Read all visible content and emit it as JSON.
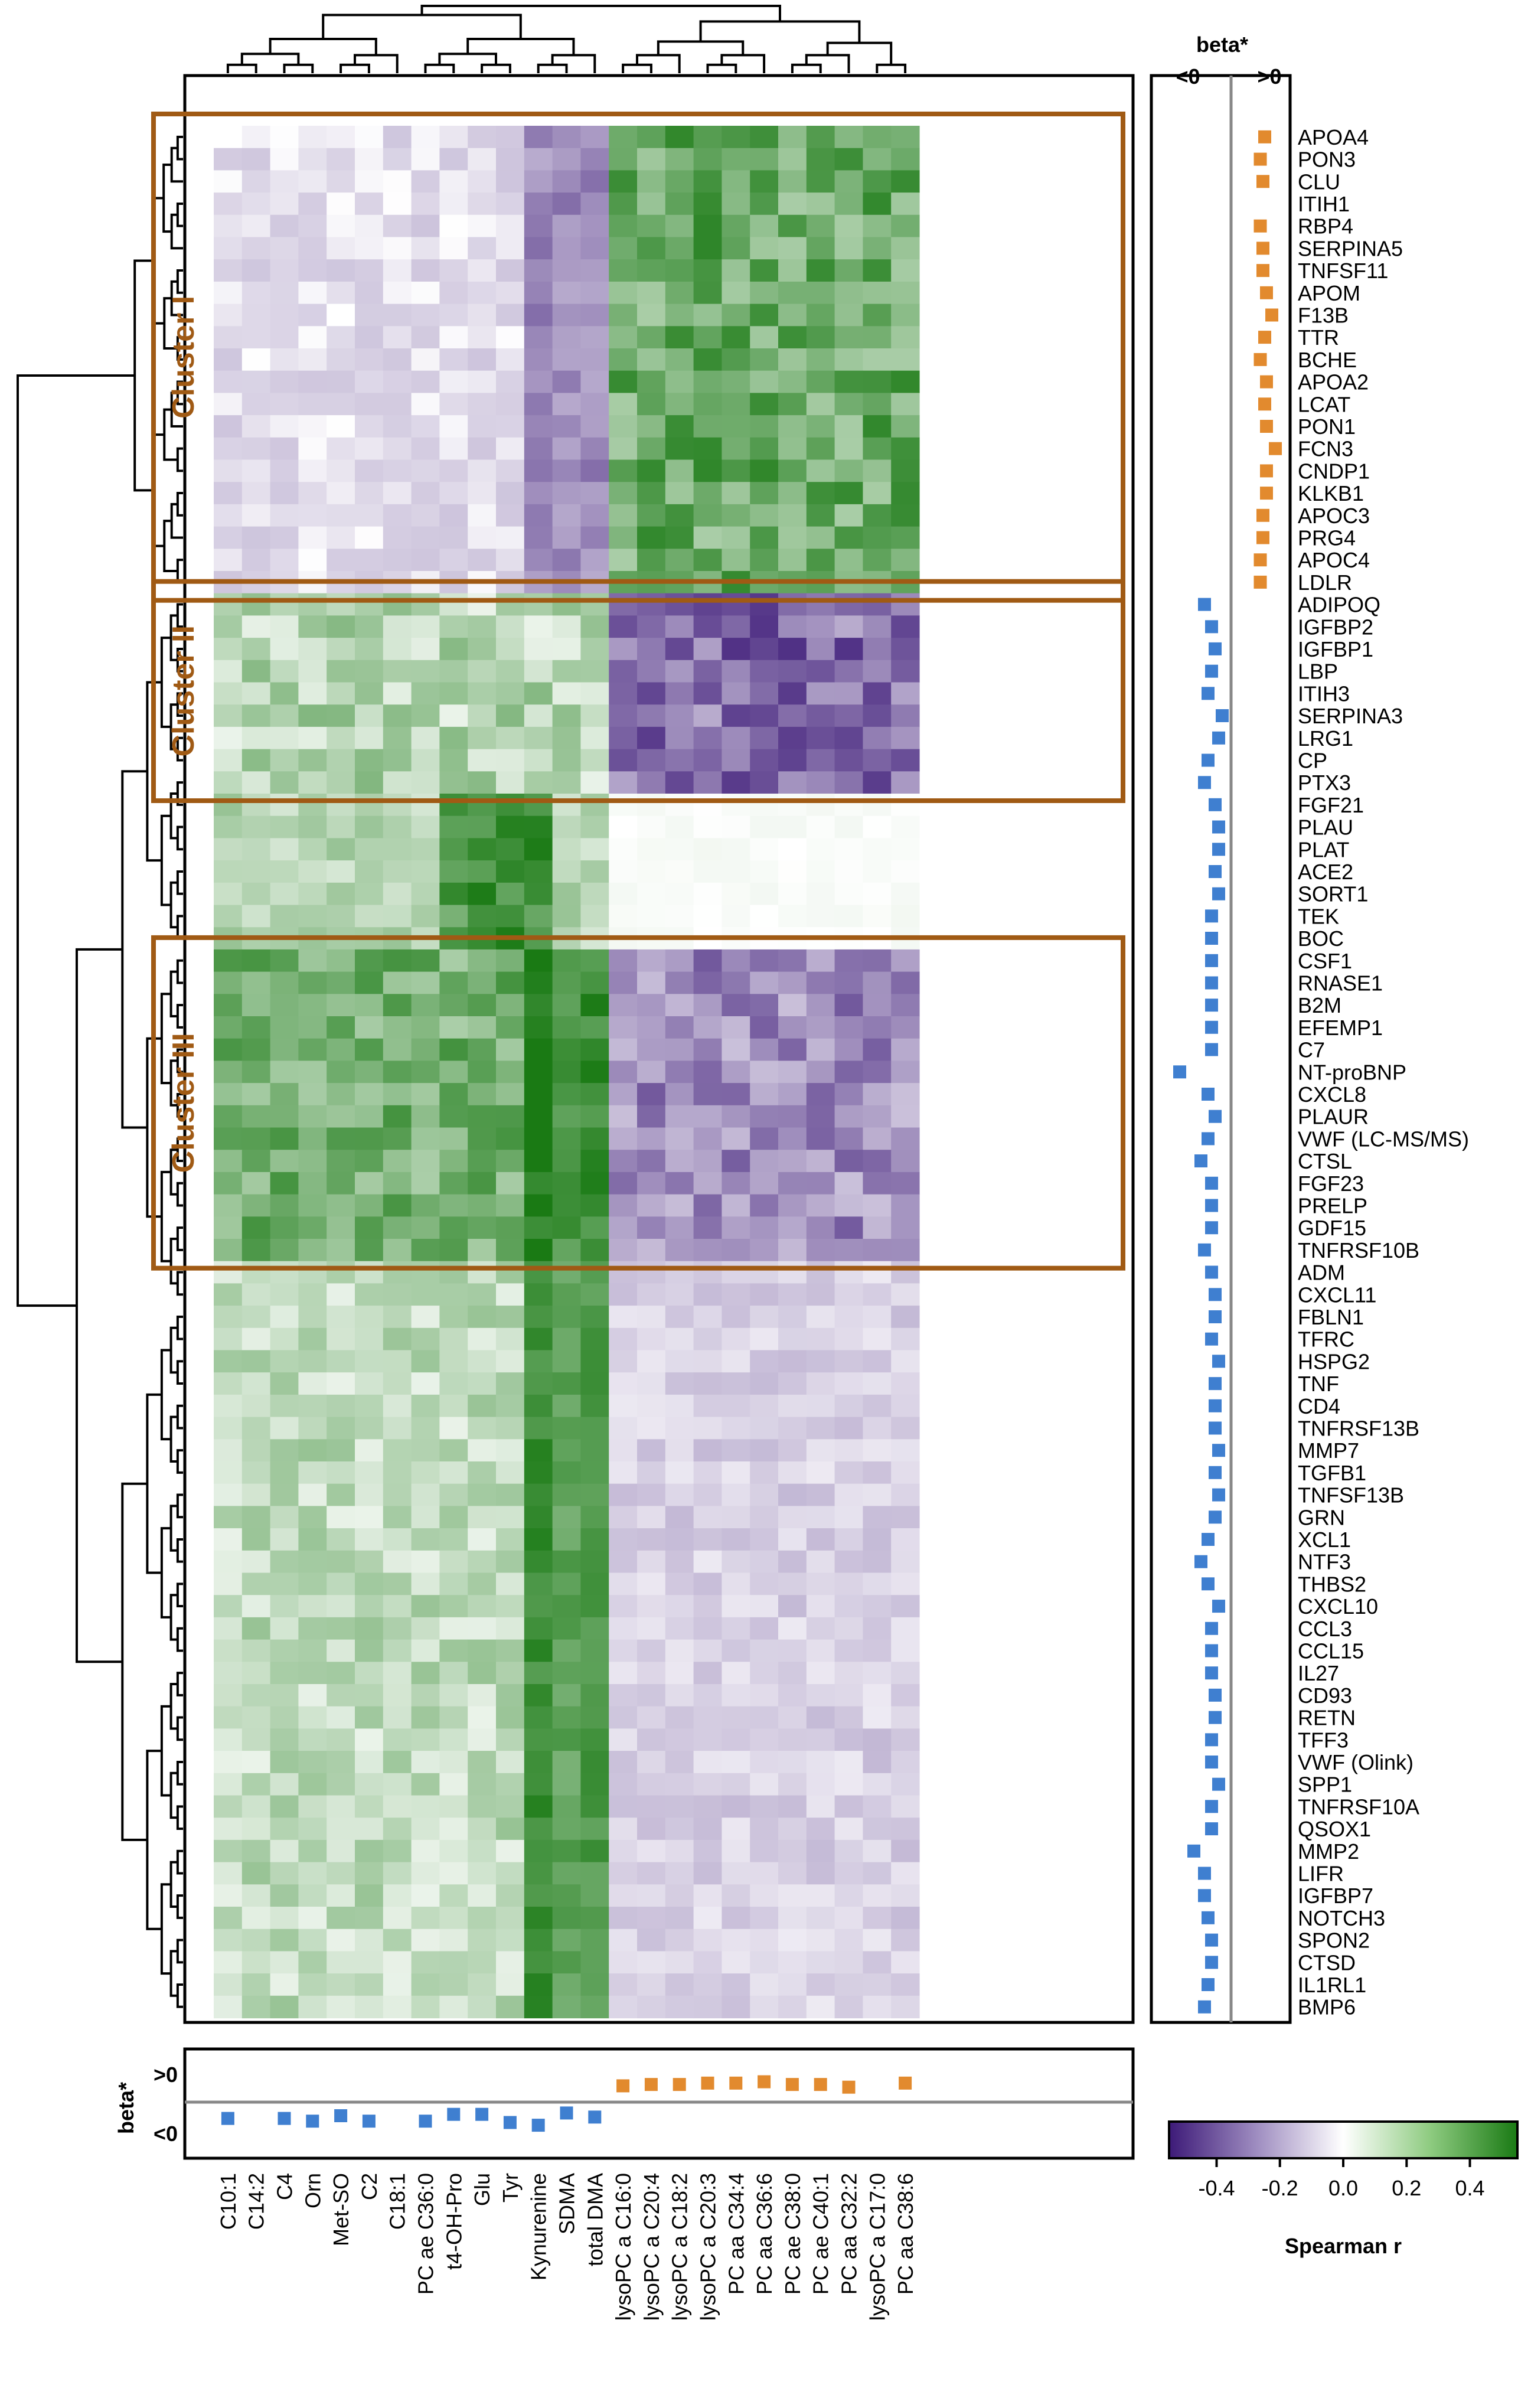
{
  "chart_data": {
    "type": "heatmap",
    "title": "",
    "colorbar": {
      "label": "Spearman r",
      "ticks": [
        "-0.4",
        "-0.2",
        "0.0",
        "0.2",
        "0.4"
      ],
      "tick_values": [
        -0.4,
        -0.2,
        0.0,
        0.2,
        0.4
      ],
      "range": [
        -0.55,
        0.55
      ],
      "colors": {
        "negative": "#3d1a78",
        "mid": "#ffffff",
        "positive": "#1a7a14"
      }
    },
    "beta_colors": {
      "positive": "#e28a2e",
      "negative": "#3f7fd0",
      "axis": "#888888",
      "cluster_box": "#a05a14"
    },
    "columns": [
      "C10:1",
      "C14:2",
      "C4",
      "Orn",
      "Met-SO",
      "C2",
      "C18:1",
      "PC ae C36:0",
      "t4-OH-Pro",
      "Glu",
      "Tyr",
      "Kynurenine",
      "SDMA",
      "total DMA",
      "lysoPC a C16:0",
      "lysoPC a C20:4",
      "lysoPC a C18:2",
      "lysoPC a C20:3",
      "PC aa C34:4",
      "PC aa C36:6",
      "PC ae C38:0",
      "PC ae C40:1",
      "PC aa C32:2",
      "lysoPC a C17:0",
      "PC aa C38:6"
    ],
    "rows": [
      "APOA4",
      "PON3",
      "CLU",
      "ITIH1",
      "RBP4",
      "SERPINA5",
      "TNFSF11",
      "APOM",
      "F13B",
      "TTR",
      "BCHE",
      "APOA2",
      "LCAT",
      "PON1",
      "FCN3",
      "CNDP1",
      "KLKB1",
      "APOC3",
      "PRG4",
      "APOC4",
      "LDLR",
      "ADIPOQ",
      "IGFBP2",
      "IGFBP1",
      "LBP",
      "ITIH3",
      "SERPINA3",
      "LRG1",
      "CP",
      "PTX3",
      "FGF21",
      "PLAU",
      "PLAT",
      "ACE2",
      "SORT1",
      "TEK",
      "BOC",
      "CSF1",
      "RNASE1",
      "B2M",
      "EFEMP1",
      "C7",
      "NT-proBNP",
      "CXCL8",
      "PLAUR",
      "VWF (LC-MS/MS)",
      "CTSL",
      "FGF23",
      "PRELP",
      "GDF15",
      "TNFRSF10B",
      "ADM",
      "CXCL11",
      "FBLN1",
      "TFRC",
      "HSPG2",
      "TNF",
      "CD4",
      "TNFRSF13B",
      "MMP7",
      "TGFB1",
      "TNFSF13B",
      "GRN",
      "XCL1",
      "NTF3",
      "THBS2",
      "CXCL10",
      "CCL3",
      "CCL15",
      "IL27",
      "CD93",
      "RETN",
      "TFF3",
      "VWF (Olink)",
      "SPP1",
      "TNFRSF10A",
      "QSOX1",
      "MMP2",
      "LIFR",
      "IGFBP7",
      "NOTCH3",
      "SPON2",
      "CTSD",
      "IL1RL1",
      "BMP6"
    ],
    "column_beta": [
      -0.12,
      0,
      -0.12,
      -0.14,
      -0.1,
      -0.14,
      0,
      -0.14,
      -0.09,
      -0.09,
      -0.15,
      -0.17,
      -0.08,
      -0.11,
      0.12,
      0.13,
      0.13,
      0.14,
      0.14,
      0.15,
      0.13,
      0.13,
      0.11,
      0,
      0.14
    ],
    "row_beta": [
      0.38,
      0.33,
      0.36,
      0,
      0.33,
      0.36,
      0.36,
      0.4,
      0.46,
      0.38,
      0.33,
      0.4,
      0.38,
      0.4,
      0.5,
      0.4,
      0.4,
      0.36,
      0.36,
      0.33,
      0.33,
      -0.3,
      -0.22,
      -0.18,
      -0.22,
      -0.26,
      -0.1,
      -0.14,
      -0.26,
      -0.3,
      -0.18,
      -0.14,
      -0.14,
      -0.18,
      -0.14,
      -0.22,
      -0.22,
      -0.22,
      -0.22,
      -0.22,
      -0.22,
      -0.22,
      -0.58,
      -0.26,
      -0.18,
      -0.26,
      -0.34,
      -0.22,
      -0.22,
      -0.22,
      -0.3,
      -0.22,
      -0.18,
      -0.18,
      -0.22,
      -0.14,
      -0.18,
      -0.18,
      -0.18,
      -0.14,
      -0.18,
      -0.14,
      -0.18,
      -0.26,
      -0.34,
      -0.26,
      -0.14,
      -0.22,
      -0.22,
      -0.22,
      -0.18,
      -0.18,
      -0.22,
      -0.22,
      -0.14,
      -0.22,
      -0.22,
      -0.42,
      -0.3,
      -0.3,
      -0.26,
      -0.22,
      -0.22,
      -0.26,
      -0.3
    ],
    "row_groups": {
      "labels": [
        "Cluster I",
        "Cluster II",
        "",
        "Cluster III",
        ""
      ],
      "bounds": [
        [
          0,
          20
        ],
        [
          21,
          29
        ],
        [
          30,
          36
        ],
        [
          37,
          50
        ],
        [
          51,
          84
        ]
      ]
    },
    "column_group_split": 14,
    "clusters": [
      {
        "label": "Cluster I",
        "rows": [
          0,
          20
        ]
      },
      {
        "label": "Cluster II",
        "rows": [
          21,
          29
        ]
      },
      {
        "label": "Cluster III",
        "rows": [
          37,
          50
        ]
      }
    ],
    "beta_label": "beta*",
    "beta_pos": ">0",
    "beta_neg": "<0"
  }
}
